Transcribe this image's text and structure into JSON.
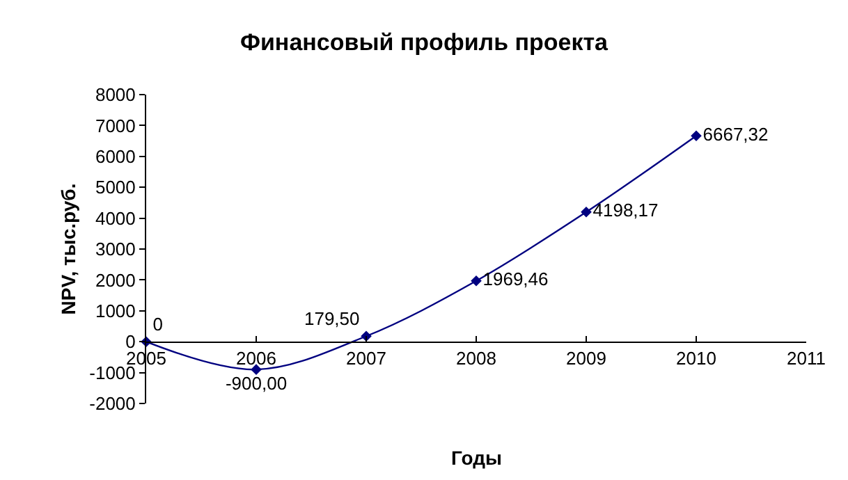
{
  "chart_data": {
    "type": "line",
    "title": "Финансовый профиль проекта",
    "xlabel": "Годы",
    "ylabel": "NPV, тыс.руб.",
    "x": [
      2005,
      2006,
      2007,
      2008,
      2009,
      2010
    ],
    "series": [
      {
        "color": "#000080",
        "values": [
          0,
          -900,
          179.5,
          1969.46,
          4198.17,
          6667.32
        ],
        "value_labels": [
          "0",
          "-900,00",
          "179,50",
          "1969,46",
          "4198,17",
          "6667,32"
        ]
      }
    ],
    "xlim": [
      2005,
      2011
    ],
    "xticks": [
      2005,
      2006,
      2007,
      2008,
      2009,
      2010,
      2011
    ],
    "ylim": [
      -2000,
      8000
    ],
    "yticks": [
      -2000,
      -1000,
      0,
      1000,
      2000,
      3000,
      4000,
      5000,
      6000,
      7000,
      8000
    ],
    "marker": "diamond",
    "line_style": "solid"
  }
}
